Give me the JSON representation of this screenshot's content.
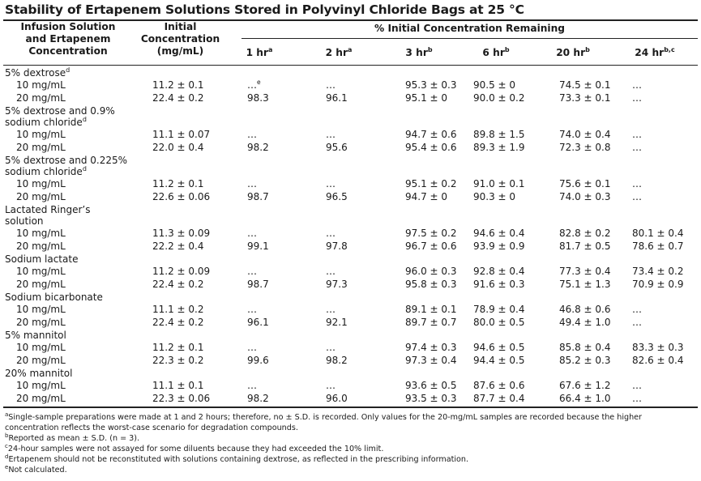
{
  "title": "Stability of Ertapenem Solutions Stored in Polyvinyl Chloride Bags at 25 °C",
  "header": {
    "col0": [
      "Infusion Solution",
      "and Ertapenem",
      "Concentration"
    ],
    "col1": [
      "Initial",
      "Concentration",
      "(mg/mL)"
    ],
    "span": "% Initial Concentration Remaining",
    "times": [
      {
        "label": "1 hr",
        "sup": "a"
      },
      {
        "label": "2 hr",
        "sup": "a"
      },
      {
        "label": "3 hr",
        "sup": "b"
      },
      {
        "label": "6 hr",
        "sup": "b"
      },
      {
        "label": "20 hr",
        "sup": "b"
      },
      {
        "label": "24 hr",
        "sup": "b,c"
      }
    ]
  },
  "groups": [
    {
      "name": [
        "5% dextrose"
      ],
      "sup": "d",
      "rows": [
        {
          "label": "10 mg/mL",
          "initial": "11.2 ± 0.1",
          "h1": "…",
          "h1_sup": "e",
          "h2": "…",
          "h3": "95.3 ± 0.3",
          "h6": "90.5 ± 0",
          "h20": "74.5 ± 0.1",
          "h24": "…"
        },
        {
          "label": "20 mg/mL",
          "initial": "22.4 ± 0.2",
          "h1": "98.3",
          "h2": "96.1",
          "h3": "95.1 ± 0",
          "h6": "90.0 ± 0.2",
          "h20": "73.3 ± 0.1",
          "h24": "…"
        }
      ]
    },
    {
      "name": [
        "5% dextrose and 0.9%",
        "sodium chloride"
      ],
      "sup": "d",
      "rows": [
        {
          "label": "10 mg/mL",
          "initial": "11.1 ± 0.07",
          "h1": "…",
          "h2": "…",
          "h3": "94.7 ± 0.6",
          "h6": "89.8 ± 1.5",
          "h20": "74.0 ± 0.4",
          "h24": "…"
        },
        {
          "label": "20 mg/mL",
          "initial": "22.0 ± 0.4",
          "h1": "98.2",
          "h2": "95.6",
          "h3": "95.4 ± 0.6",
          "h6": "89.3 ± 1.9",
          "h20": "72.3 ± 0.8",
          "h24": "…"
        }
      ]
    },
    {
      "name": [
        "5% dextrose and 0.225%",
        "sodium chloride"
      ],
      "sup": "d",
      "rows": [
        {
          "label": "10 mg/mL",
          "initial": "11.2 ± 0.1",
          "h1": "…",
          "h2": "…",
          "h3": "95.1 ± 0.2",
          "h6": "91.0 ± 0.1",
          "h20": "75.6 ± 0.1",
          "h24": "…"
        },
        {
          "label": "20 mg/mL",
          "initial": "22.6 ± 0.06",
          "h1": "98.7",
          "h2": "96.5",
          "h3": "94.7 ± 0",
          "h6": "90.3 ± 0",
          "h20": "74.0 ± 0.3",
          "h24": "…"
        }
      ]
    },
    {
      "name": [
        "Lactated Ringer’s",
        "solution"
      ],
      "sup": "",
      "rows": [
        {
          "label": "10 mg/mL",
          "initial": "11.3 ± 0.09",
          "h1": "…",
          "h2": "…",
          "h3": "97.5 ± 0.2",
          "h6": "94.6 ± 0.4",
          "h20": "82.8 ± 0.2",
          "h24": "80.1 ± 0.4"
        },
        {
          "label": "20 mg/mL",
          "initial": "22.2 ± 0.4",
          "h1": "99.1",
          "h2": "97.8",
          "h3": "96.7 ± 0.6",
          "h6": "93.9 ± 0.9",
          "h20": "81.7 ± 0.5",
          "h24": "78.6 ± 0.7"
        }
      ]
    },
    {
      "name": [
        "Sodium lactate"
      ],
      "sup": "",
      "rows": [
        {
          "label": "10 mg/mL",
          "initial": "11.2 ± 0.09",
          "h1": "…",
          "h2": "…",
          "h3": "96.0 ± 0.3",
          "h6": "92.8 ± 0.4",
          "h20": "77.3 ± 0.4",
          "h24": "73.4 ± 0.2"
        },
        {
          "label": "20 mg/mL",
          "initial": "22.4 ± 0.2",
          "h1": "98.7",
          "h2": "97.3",
          "h3": "95.8 ± 0.3",
          "h6": "91.6 ± 0.3",
          "h20": "75.1 ± 1.3",
          "h24": "70.9 ± 0.9"
        }
      ]
    },
    {
      "name": [
        "Sodium bicarbonate"
      ],
      "sup": "",
      "rows": [
        {
          "label": "10 mg/mL",
          "initial": "11.1 ± 0.2",
          "h1": "…",
          "h2": "…",
          "h3": "89.1 ± 0.1",
          "h6": "78.9 ± 0.4",
          "h20": "46.8 ± 0.6",
          "h24": "…"
        },
        {
          "label": "20 mg/mL",
          "initial": "22.4 ± 0.2",
          "h1": "96.1",
          "h2": "92.1",
          "h3": "89.7 ± 0.7",
          "h6": "80.0 ± 0.5",
          "h20": "49.4 ± 1.0",
          "h24": "…"
        }
      ]
    },
    {
      "name": [
        "5% mannitol"
      ],
      "sup": "",
      "rows": [
        {
          "label": "10 mg/mL",
          "initial": "11.2 ± 0.1",
          "h1": "…",
          "h2": "…",
          "h3": "97.4 ± 0.3",
          "h6": "94.6 ± 0.5",
          "h20": "85.8 ± 0.4",
          "h24": "83.3 ± 0.3"
        },
        {
          "label": "20 mg/mL",
          "initial": "22.3 ± 0.2",
          "h1": "99.6",
          "h2": "98.2",
          "h3": "97.3 ± 0.4",
          "h6": "94.4 ± 0.5",
          "h20": "85.2 ± 0.3",
          "h24": "82.6 ± 0.4"
        }
      ]
    },
    {
      "name": [
        "20% mannitol"
      ],
      "sup": "",
      "rows": [
        {
          "label": "10 mg/mL",
          "initial": "11.1 ± 0.1",
          "h1": "…",
          "h2": "…",
          "h3": "93.6 ± 0.5",
          "h6": "87.6 ± 0.6",
          "h20": "67.6 ± 1.2",
          "h24": "…"
        },
        {
          "label": "20 mg/mL",
          "initial": "22.3 ± 0.06",
          "h1": "98.2",
          "h2": "96.0",
          "h3": "93.5 ± 0.3",
          "h6": "87.7 ± 0.4",
          "h20": "66.4 ± 1.0",
          "h24": "…"
        }
      ]
    }
  ],
  "footnotes": [
    {
      "mark": "a",
      "text": "Single-sample preparations were made at 1 and 2 hours; therefore, no ± S.D. is recorded. Only values for the 20-mg/mL samples are recorded because the higher concentration reflects the worst-case scenario for degradation compounds."
    },
    {
      "mark": "b",
      "text": "Reported as mean ± S.D. (n = 3)."
    },
    {
      "mark": "c",
      "text": "24-hour samples were not assayed for some diluents because they had exceeded the 10% limit."
    },
    {
      "mark": "d",
      "text": "Ertapenem should not be reconstituted with solutions containing dextrose, as reflected in the prescribing information."
    },
    {
      "mark": "e",
      "text": "Not calculated."
    }
  ]
}
